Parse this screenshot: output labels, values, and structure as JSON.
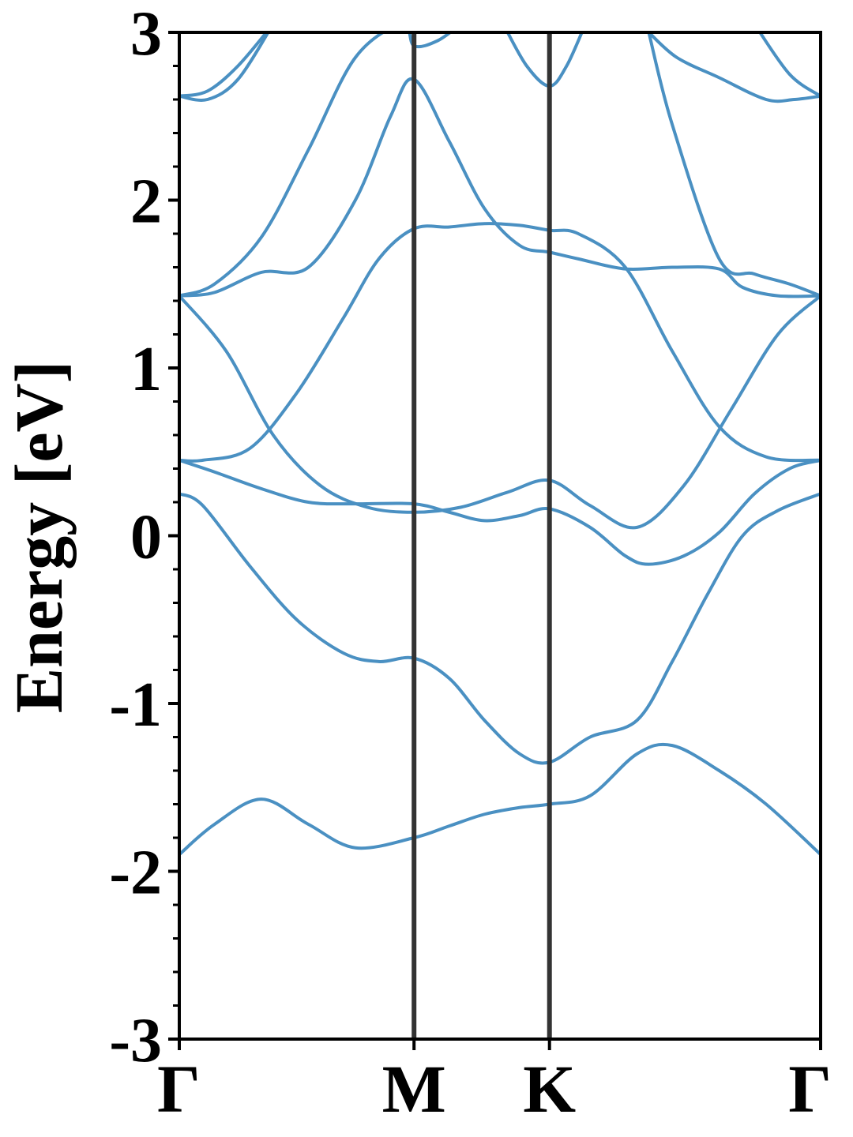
{
  "chart_data": {
    "type": "line",
    "title": "",
    "xlabel": "",
    "ylabel": "Energy [eV]",
    "ylim": [
      -3,
      3
    ],
    "y_ticks": [
      -3,
      -2,
      -1,
      0,
      1,
      2,
      3
    ],
    "y_minor_step": 0.2,
    "grid": false,
    "x_ticks": [
      {
        "label": "Γ",
        "x": 0.0
      },
      {
        "label": "M",
        "x": 1.0
      },
      {
        "label": "K",
        "x": 1.577
      },
      {
        "label": "Γ",
        "x": 2.732
      }
    ],
    "xlim": [
      0.0,
      2.732
    ],
    "colors": {
      "bands": "#4a90c2",
      "path_lines": "#333333",
      "frame": "#000000"
    },
    "series": [
      {
        "x": [
          0,
          0.15,
          0.35,
          0.55,
          0.75,
          1.0,
          1.15,
          1.3,
          1.45,
          1.577,
          1.75,
          1.95,
          2.1,
          2.3,
          2.5,
          2.732
        ],
        "values": [
          -1.9,
          -1.72,
          -1.57,
          -1.72,
          -1.86,
          -1.8,
          -1.73,
          -1.66,
          -1.62,
          -1.6,
          -1.55,
          -1.3,
          -1.25,
          -1.4,
          -1.6,
          -1.9
        ]
      },
      {
        "x": [
          0,
          0.1,
          0.3,
          0.5,
          0.7,
          0.85,
          1.0,
          1.15,
          1.3,
          1.45,
          1.577,
          1.75,
          1.95,
          2.1,
          2.25,
          2.4,
          2.55,
          2.732
        ],
        "values": [
          0.25,
          0.18,
          -0.18,
          -0.5,
          -0.7,
          -0.75,
          -0.73,
          -0.85,
          -1.1,
          -1.3,
          -1.35,
          -1.2,
          -1.1,
          -0.75,
          -0.35,
          0.0,
          0.15,
          0.25
        ]
      },
      {
        "x": [
          0,
          0.15,
          0.35,
          0.55,
          0.75,
          1.0,
          1.15,
          1.3,
          1.45,
          1.577,
          1.75,
          1.9,
          2.0,
          2.15,
          2.3,
          2.45,
          2.6,
          2.732
        ],
        "values": [
          0.45,
          0.38,
          0.28,
          0.2,
          0.19,
          0.19,
          0.14,
          0.09,
          0.12,
          0.16,
          0.05,
          -0.12,
          -0.17,
          -0.12,
          0.02,
          0.25,
          0.4,
          0.45
        ]
      },
      {
        "x": [
          0,
          0.2,
          0.4,
          0.6,
          0.8,
          1.0,
          1.2,
          1.4,
          1.577,
          1.75,
          1.95,
          2.15,
          2.35,
          2.55,
          2.732
        ],
        "values": [
          1.43,
          1.1,
          0.6,
          0.3,
          0.17,
          0.14,
          0.17,
          0.26,
          0.33,
          0.18,
          0.05,
          0.3,
          0.75,
          1.2,
          1.43
        ]
      },
      {
        "x": [
          0,
          0.1,
          0.3,
          0.5,
          0.7,
          0.85,
          1.0,
          1.15,
          1.3,
          1.45,
          1.577,
          1.7,
          1.9,
          2.1,
          2.3,
          2.5,
          2.732
        ],
        "values": [
          0.45,
          0.45,
          0.52,
          0.85,
          1.3,
          1.65,
          1.83,
          1.84,
          1.86,
          1.85,
          1.82,
          1.8,
          1.6,
          1.1,
          0.65,
          0.47,
          0.45
        ]
      },
      {
        "x": [
          0,
          0.15,
          0.35,
          0.55,
          0.75,
          0.9,
          1.0,
          1.15,
          1.3,
          1.45,
          1.577,
          1.7,
          1.9,
          2.1,
          2.3,
          2.4,
          2.55,
          2.732
        ],
        "values": [
          1.43,
          1.45,
          1.57,
          1.6,
          2.0,
          2.5,
          2.72,
          2.35,
          1.95,
          1.73,
          1.69,
          1.65,
          1.59,
          1.6,
          1.59,
          1.48,
          1.43,
          1.43
        ]
      },
      {
        "x": [
          0,
          0.15,
          0.35,
          0.55,
          0.75,
          0.95,
          1.0,
          1.1,
          1.2
        ],
        "values": [
          1.43,
          1.5,
          1.78,
          2.3,
          2.85,
          3.05,
          2.92,
          2.95,
          3.05
        ]
      },
      {
        "x": [
          1.38,
          1.48,
          1.577,
          1.65,
          1.73
        ],
        "values": [
          3.05,
          2.8,
          2.68,
          2.8,
          3.05
        ]
      },
      {
        "x": [
          2.0,
          2.1,
          2.3,
          2.45,
          2.6,
          2.732
        ],
        "values": [
          3.0,
          2.45,
          1.65,
          1.56,
          1.5,
          1.43
        ]
      },
      {
        "x": [
          2.0,
          2.12,
          2.3,
          2.5,
          2.62,
          2.732
        ],
        "values": [
          3.0,
          2.85,
          2.73,
          2.6,
          2.6,
          2.62
        ]
      },
      {
        "x": [
          0,
          0.12,
          0.25,
          0.4
        ],
        "values": [
          2.62,
          2.6,
          2.72,
          3.05
        ]
      },
      {
        "x": [
          0,
          0.12,
          0.25,
          0.4
        ],
        "values": [
          2.62,
          2.65,
          2.8,
          3.05
        ]
      },
      {
        "x": [
          2.45,
          2.6,
          2.732
        ],
        "values": [
          3.05,
          2.75,
          2.62
        ]
      }
    ]
  }
}
